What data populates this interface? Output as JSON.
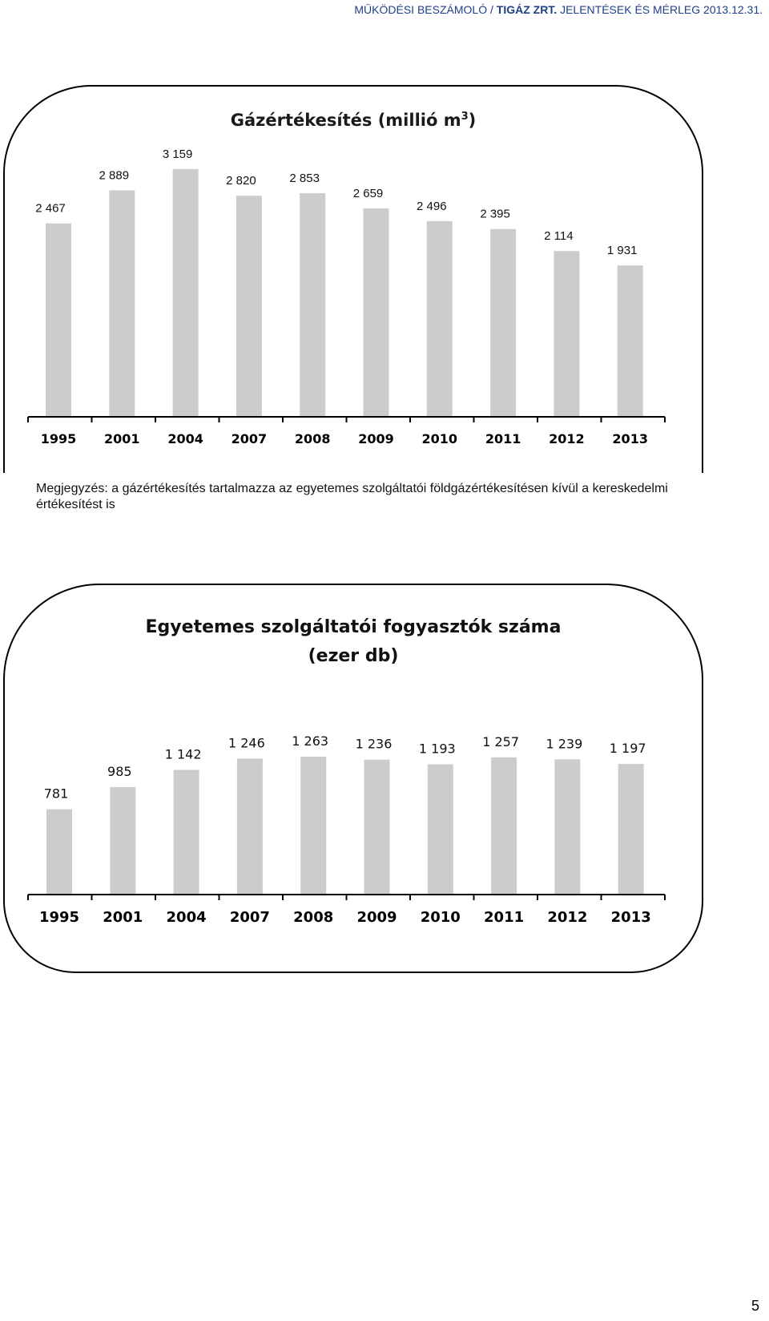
{
  "header": {
    "prefix": "MŰKÖDÉSI BESZÁMOLÓ / ",
    "org": "TIGÁZ ZRT.",
    "suffix": " JELENTÉSEK ÉS MÉRLEG 2013.12.31."
  },
  "note": {
    "line1": "Megjegyzés: a gázértékesítés tartalmazza az egyetemes szolgáltatói földgázértékesítésen kívül a kereskedelmi",
    "line2": "értékesítést is"
  },
  "page_number": "5",
  "colors": {
    "bar": "#cccccc",
    "axis": "#000000"
  },
  "chart_data": [
    {
      "type": "bar",
      "title_main": "Gázértékesítés (millió m",
      "title_sup": "3",
      "title_end": ")",
      "categories": [
        "1995",
        "2001",
        "2004",
        "2007",
        "2008",
        "2009",
        "2010",
        "2011",
        "2012",
        "2013"
      ],
      "values": [
        2467,
        2889,
        3159,
        2820,
        2853,
        2659,
        2496,
        2395,
        2114,
        1931
      ],
      "data_labels": [
        "2 467",
        "2 889",
        "3 159",
        "2 820",
        "2 853",
        "2 659",
        "2 496",
        "2 395",
        "2 114",
        "1 931"
      ],
      "ylim": [
        0,
        3159
      ]
    },
    {
      "type": "bar",
      "title_line1": "Egyetemes szolgáltatói fogyasztók száma",
      "title_line2": "(ezer db)",
      "categories": [
        "1995",
        "2001",
        "2004",
        "2007",
        "2008",
        "2009",
        "2010",
        "2011",
        "2012",
        "2013"
      ],
      "values": [
        781,
        985,
        1142,
        1246,
        1263,
        1236,
        1193,
        1257,
        1239,
        1197
      ],
      "data_labels": [
        "781",
        "985",
        "1 142",
        "1 246",
        "1 263",
        "1 236",
        "1 193",
        "1 257",
        "1 239",
        "1 197"
      ],
      "ylim": [
        0,
        1263
      ]
    }
  ]
}
